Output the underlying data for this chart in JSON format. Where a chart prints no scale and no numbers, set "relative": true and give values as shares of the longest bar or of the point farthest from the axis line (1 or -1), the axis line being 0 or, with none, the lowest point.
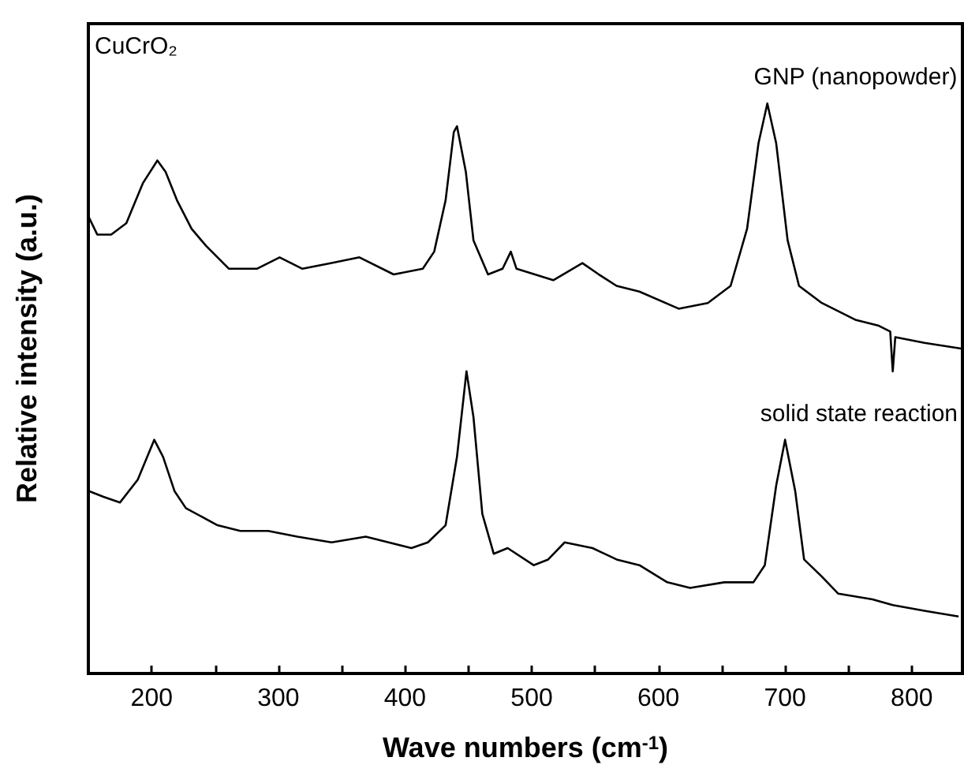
{
  "chart_data": {
    "type": "line",
    "relative": true,
    "xlabel": "Wave numbers (cm$^{-1}$)",
    "ylabel": "Relative intensity (a.u.)",
    "annotations": [
      "CuCrO₂"
    ],
    "xlim": [
      150,
      840
    ],
    "xticks": [
      200,
      {
        "value": 250,
        "label": null
      },
      300,
      {
        "value": 350,
        "label": null
      },
      400,
      {
        "value": 450,
        "label": null
      },
      500,
      {
        "value": 550,
        "label": null
      },
      600,
      {
        "value": 650,
        "label": null
      },
      700,
      {
        "value": 750,
        "label": null
      },
      800
    ],
    "tick_labels": "x",
    "grid": false,
    "legend": false,
    "marker": "none",
    "line_style": "solid",
    "series": [
      {
        "name": "GNP (nanopowder)",
        "color": "#000000",
        "x": [
          150.5,
          157,
          168,
          180,
          193,
          204.5,
          211,
          220,
          231.5,
          243,
          261,
          283,
          301,
          319,
          342,
          364,
          391,
          414,
          423,
          432,
          438.5,
          441,
          448,
          454,
          465.5,
          477,
          483.5,
          488,
          517,
          540,
          553,
          567,
          585,
          616,
          639,
          657,
          670,
          679,
          686,
          693,
          702,
          711,
          729,
          756,
          774,
          783,
          785,
          787,
          810,
          839
        ],
        "values": [
          0.8,
          0.77,
          0.77,
          0.79,
          0.86,
          0.9,
          0.88,
          0.83,
          0.78,
          0.75,
          0.71,
          0.71,
          0.73,
          0.71,
          0.72,
          0.73,
          0.7,
          0.71,
          0.74,
          0.83,
          0.95,
          0.96,
          0.88,
          0.76,
          0.7,
          0.71,
          0.74,
          0.71,
          0.69,
          0.72,
          0.7,
          0.68,
          0.67,
          0.64,
          0.65,
          0.68,
          0.78,
          0.93,
          1.0,
          0.93,
          0.76,
          0.68,
          0.65,
          0.62,
          0.61,
          0.6,
          0.53,
          0.59,
          0.58,
          0.57
        ]
      },
      {
        "name": "solid state reaction",
        "color": "#000000",
        "x": [
          150.5,
          162,
          175,
          189,
          202,
          209,
          218,
          227,
          252,
          270,
          292,
          315,
          342,
          369,
          387,
          405,
          418,
          432,
          441,
          448.5,
          454,
          461,
          470,
          481,
          501.5,
          513,
          526,
          548,
          567,
          585,
          607,
          625,
          652,
          675,
          684,
          693,
          700,
          708,
          715,
          729,
          742,
          769,
          785,
          810,
          837
        ],
        "values": [
          0.32,
          0.31,
          0.3,
          0.34,
          0.41,
          0.38,
          0.32,
          0.29,
          0.26,
          0.25,
          0.25,
          0.24,
          0.23,
          0.24,
          0.23,
          0.22,
          0.23,
          0.26,
          0.38,
          0.53,
          0.45,
          0.28,
          0.21,
          0.22,
          0.19,
          0.2,
          0.23,
          0.22,
          0.2,
          0.19,
          0.16,
          0.15,
          0.16,
          0.16,
          0.19,
          0.33,
          0.41,
          0.32,
          0.2,
          0.17,
          0.14,
          0.13,
          0.12,
          0.11,
          0.1
        ]
      }
    ]
  }
}
